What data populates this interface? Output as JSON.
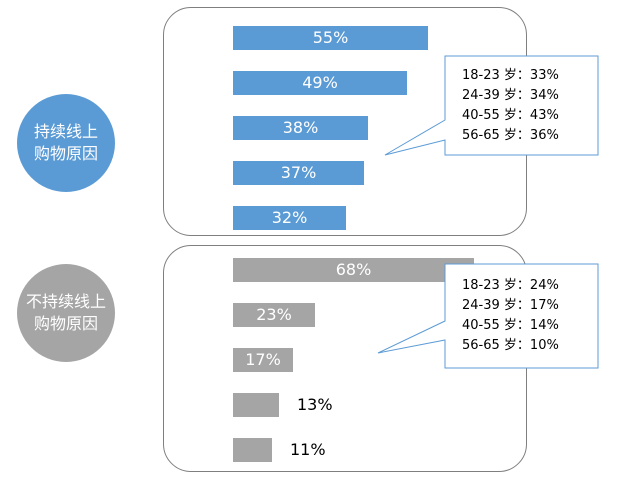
{
  "colors": {
    "online_accent": "#5b9bd5",
    "offline_accent": "#a5a5a5",
    "callout_border": "#5b9bd5",
    "panel_border": "#7f7f7f"
  },
  "chart_data": [
    {
      "type": "bar",
      "orientation": "horizontal",
      "title": "持续线上\n购物原因",
      "values": [
        55,
        49,
        38,
        37,
        32
      ],
      "value_labels": [
        "55%",
        "49%",
        "38%",
        "37%",
        "32%"
      ],
      "xlim": [
        0,
        70
      ],
      "color": "#5b9bd5",
      "annotation": {
        "lines": [
          {
            "age": "18-23 岁：",
            "value": "33%"
          },
          {
            "age": "24-39 岁：",
            "value": "34%"
          },
          {
            "age": "40-55 岁：",
            "value": "43%"
          },
          {
            "age": "56-65 岁：",
            "value": "36%"
          }
        ]
      }
    },
    {
      "type": "bar",
      "orientation": "horizontal",
      "title": "不持续线上\n购物原因",
      "values": [
        68,
        23,
        17,
        13,
        11
      ],
      "value_labels": [
        "68%",
        "23%",
        "17%",
        "13%",
        "11%"
      ],
      "xlim": [
        0,
        70
      ],
      "color": "#a5a5a5",
      "annotation": {
        "lines": [
          {
            "age": "18-23 岁：",
            "value": "24%"
          },
          {
            "age": "24-39 岁：",
            "value": "17%"
          },
          {
            "age": "40-55 岁：",
            "value": "14%"
          },
          {
            "age": "56-65 岁：",
            "value": "10%"
          }
        ]
      }
    }
  ]
}
